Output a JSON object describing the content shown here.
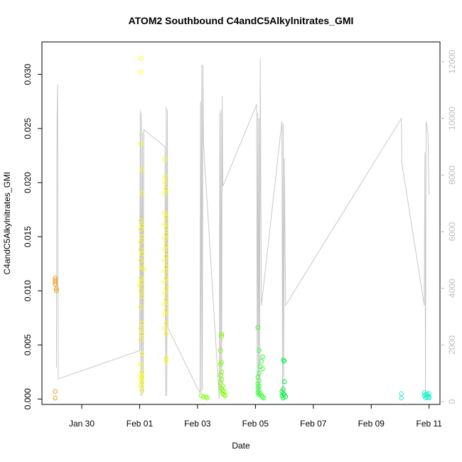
{
  "chart_data": {
    "type": "scatter",
    "title": "ATOM2 Southbound C4andC5Alkylnitrates_GMI",
    "xlabel": "Date",
    "ylabel": "C4andC5Alkylnitrates_GMI",
    "x_ticks": [
      "Jan 30",
      "Feb 01",
      "Feb 03",
      "Feb 05",
      "Feb 07",
      "Feb 09",
      "Feb 11"
    ],
    "x_range_days": [
      "Jan 28 15:00",
      "Feb 11 09:00"
    ],
    "ylim": [
      -0.0005,
      0.033
    ],
    "y_ticks": [
      "0.000",
      "0.005",
      "0.010",
      "0.015",
      "0.020",
      "0.025",
      "0.030"
    ],
    "y2lim": [
      -100,
      12700
    ],
    "y2_ticks": [
      "0",
      "2000",
      "4000",
      "6000",
      "8000",
      "10000",
      "12000"
    ],
    "y2_color": "#bdbdbd",
    "grid": false,
    "series": [
      {
        "color": "#f29a1a",
        "points": [
          [
            "Jan 29 02:00",
            0.0112
          ],
          [
            "Jan 29 02:00",
            0.011
          ],
          [
            "Jan 29 02:00",
            0.0108
          ],
          [
            "Jan 29 02:00",
            0.0106
          ],
          [
            "Jan 29 03:00",
            0.0102
          ],
          [
            "Jan 29 03:00",
            0.01
          ],
          [
            "Jan 29 02:00",
            0.0007
          ],
          [
            "Jan 29 02:00",
            0.0001
          ]
        ]
      },
      {
        "color": "#ffff00",
        "points": [
          [
            "Feb 01 01:00",
            0.0315
          ],
          [
            "Feb 01 01:00",
            0.0302
          ],
          [
            "Feb 01 01:00",
            0.0236
          ],
          [
            "Feb 01 02:00",
            0.0212
          ],
          [
            "Feb 01 02:00",
            0.019
          ],
          [
            "Feb 01 01:00",
            0.0165
          ],
          [
            "Feb 01 02:00",
            0.016
          ],
          [
            "Feb 01 01:00",
            0.0157
          ],
          [
            "Feb 01 02:00",
            0.015
          ],
          [
            "Feb 01 01:00",
            0.0145
          ],
          [
            "Feb 01 01:00",
            0.0138
          ],
          [
            "Feb 01 02:00",
            0.0134
          ],
          [
            "Feb 01 01:00",
            0.0128
          ],
          [
            "Feb 01 02:00",
            0.0122
          ],
          [
            "Feb 01 03:00",
            0.012
          ],
          [
            "Feb 01 01:00",
            0.0112
          ],
          [
            "Feb 01 02:00",
            0.0108
          ],
          [
            "Feb 01 00:00",
            0.0105
          ],
          [
            "Feb 01 01:00",
            0.01
          ],
          [
            "Feb 01 02:00",
            0.0095
          ],
          [
            "Feb 01 01:00",
            0.0085
          ],
          [
            "Feb 01 02:00",
            0.007
          ],
          [
            "Feb 01 01:00",
            0.0065
          ],
          [
            "Feb 01 02:00",
            0.006
          ],
          [
            "Feb 01 01:00",
            0.0055
          ],
          [
            "Feb 01 02:00",
            0.0042
          ],
          [
            "Feb 01 01:00",
            0.0032
          ],
          [
            "Feb 01 02:00",
            0.0025
          ],
          [
            "Feb 01 01:00",
            0.0022
          ],
          [
            "Feb 01 02:00",
            0.002
          ],
          [
            "Feb 01 01:00",
            0.0018
          ],
          [
            "Feb 01 02:00",
            0.0015
          ],
          [
            "Feb 01 01:00",
            0.0012
          ],
          [
            "Feb 01 02:00",
            0.0008
          ],
          [
            "Feb 01 21:00",
            0.0222
          ],
          [
            "Feb 01 21:00",
            0.0205
          ],
          [
            "Feb 01 21:00",
            0.02
          ],
          [
            "Feb 01 22:00",
            0.0194
          ],
          [
            "Feb 01 21:00",
            0.019
          ],
          [
            "Feb 01 21:00",
            0.0172
          ],
          [
            "Feb 01 22:00",
            0.0168
          ],
          [
            "Feb 01 21:00",
            0.0162
          ],
          [
            "Feb 01 22:00",
            0.0158
          ],
          [
            "Feb 01 22:00",
            0.0152
          ],
          [
            "Feb 01 21:00",
            0.0148
          ],
          [
            "Feb 01 22:00",
            0.0142
          ],
          [
            "Feb 01 21:00",
            0.0138
          ],
          [
            "Feb 01 22:00",
            0.0132
          ],
          [
            "Feb 01 21:00",
            0.0128
          ],
          [
            "Feb 01 22:00",
            0.0122
          ],
          [
            "Feb 01 21:00",
            0.0118
          ],
          [
            "Feb 01 22:00",
            0.0112
          ],
          [
            "Feb 01 21:00",
            0.0108
          ],
          [
            "Feb 01 22:00",
            0.0102
          ],
          [
            "Feb 01 21:00",
            0.0098
          ],
          [
            "Feb 01 22:00",
            0.0092
          ],
          [
            "Feb 01 21:00",
            0.0088
          ],
          [
            "Feb 01 22:00",
            0.0082
          ],
          [
            "Feb 01 21:00",
            0.0078
          ],
          [
            "Feb 01 22:00",
            0.007
          ],
          [
            "Feb 01 21:00",
            0.0065
          ],
          [
            "Feb 01 22:00",
            0.006
          ],
          [
            "Feb 01 22:00",
            0.0038
          ],
          [
            "Feb 01 22:00",
            0.0035
          ]
        ]
      },
      {
        "color": "#80ff00",
        "points": [
          [
            "Feb 03 03:00",
            0.0003
          ],
          [
            "Feb 03 05:00",
            0.0002
          ],
          [
            "Feb 03 07:00",
            0.0002
          ],
          [
            "Feb 03 08:00",
            0.0001
          ],
          [
            "Feb 03 20:00",
            0.006
          ],
          [
            "Feb 03 20:00",
            0.0058
          ],
          [
            "Feb 03 19:00",
            0.0045
          ],
          [
            "Feb 03 20:00",
            0.0034
          ],
          [
            "Feb 03 19:00",
            0.0032
          ],
          [
            "Feb 03 20:00",
            0.0025
          ],
          [
            "Feb 03 19:00",
            0.0022
          ],
          [
            "Feb 03 20:00",
            0.0018
          ],
          [
            "Feb 03 19:00",
            0.0015
          ],
          [
            "Feb 03 21:00",
            0.0012
          ],
          [
            "Feb 03 20:00",
            0.001
          ],
          [
            "Feb 03 21:00",
            0.0008
          ],
          [
            "Feb 03 22:00",
            0.0007
          ],
          [
            "Feb 03 21:00",
            0.0005
          ],
          [
            "Feb 03 22:00",
            0.0004
          ],
          [
            "Feb 03 23:00",
            0.0003
          ]
        ]
      },
      {
        "color": "#33ff33",
        "points": [
          [
            "Feb 05 02:00",
            0.0066
          ],
          [
            "Feb 05 03:00",
            0.0045
          ],
          [
            "Feb 05 06:00",
            0.0039
          ],
          [
            "Feb 05 05:00",
            0.0035
          ],
          [
            "Feb 05 04:00",
            0.003
          ],
          [
            "Feb 05 06:00",
            0.0028
          ],
          [
            "Feb 05 03:00",
            0.0024
          ],
          [
            "Feb 05 02:00",
            0.002
          ],
          [
            "Feb 05 03:00",
            0.0017
          ],
          [
            "Feb 05 02:00",
            0.0014
          ],
          [
            "Feb 05 03:00",
            0.0012
          ],
          [
            "Feb 05 02:00",
            0.001
          ],
          [
            "Feb 05 03:00",
            0.0008
          ],
          [
            "Feb 05 02:00",
            0.0006
          ],
          [
            "Feb 05 04:00",
            0.0005
          ],
          [
            "Feb 05 03:00",
            0.0004
          ],
          [
            "Feb 05 05:00",
            0.0003
          ],
          [
            "Feb 05 06:00",
            0.0002
          ],
          [
            "Feb 05 07:00",
            0.0001
          ]
        ]
      },
      {
        "color": "#00ee44",
        "points": [
          [
            "Feb 05 23:00",
            0.0036
          ],
          [
            "Feb 06 00:00",
            0.0035
          ],
          [
            "Feb 06 00:00",
            0.0016
          ],
          [
            "Feb 05 23:00",
            0.0009
          ],
          [
            "Feb 05 22:00",
            0.0007
          ],
          [
            "Feb 05 23:00",
            0.0005
          ],
          [
            "Feb 06 00:00",
            0.0004
          ],
          [
            "Feb 05 22:00",
            0.0003
          ],
          [
            "Feb 06 01:00",
            0.0002
          ],
          [
            "Feb 05 23:00",
            0.0001
          ]
        ]
      },
      {
        "color": "#22eecc",
        "points": [
          [
            "Feb 10 01:00",
            0.0005
          ],
          [
            "Feb 10 01:00",
            0.0001
          ],
          [
            "Feb 10 20:00",
            0.0006
          ],
          [
            "Feb 10 22:00",
            0.0005
          ],
          [
            "Feb 10 21:00",
            0.0004
          ],
          [
            "Feb 11 00:00",
            0.0005
          ],
          [
            "Feb 10 20:00",
            0.0003
          ],
          [
            "Feb 10 22:00",
            0.0002
          ],
          [
            "Feb 10 23:00",
            0.0003
          ],
          [
            "Feb 11 00:00",
            0.0002
          ],
          [
            "Feb 10 21:00",
            0.0001
          ],
          [
            "Feb 11 00:00",
            0.0001
          ]
        ]
      }
    ],
    "altitude_series": {
      "axis": "right",
      "color": "#c8c8c8",
      "points": [
        [
          "Jan 29 03:00",
          1200
        ],
        [
          "Jan 29 03:30",
          9800
        ],
        [
          "Jan 29 04:00",
          11200
        ],
        [
          "Jan 29 04:30",
          800
        ],
        [
          "Feb 01 00:00",
          1800
        ],
        [
          "Feb 01 00:30",
          10300
        ],
        [
          "Feb 01 01:00",
          200
        ],
        [
          "Feb 01 01:30",
          10200
        ],
        [
          "Feb 01 02:00",
          200
        ],
        [
          "Feb 01 02:30",
          9500
        ],
        [
          "Feb 01 03:00",
          300
        ],
        [
          "Feb 01 03:30",
          9600
        ],
        [
          "Feb 01 21:00",
          9000
        ],
        [
          "Feb 01 21:30",
          200
        ],
        [
          "Feb 01 22:00",
          10400
        ],
        [
          "Feb 01 22:30",
          200
        ],
        [
          "Feb 01 23:00",
          10300
        ],
        [
          "Feb 01 23:30",
          2600
        ],
        [
          "Feb 03 02:00",
          300
        ],
        [
          "Feb 03 02:30",
          10600
        ],
        [
          "Feb 03 03:00",
          300
        ],
        [
          "Feb 03 03:30",
          11900
        ],
        [
          "Feb 03 04:00",
          400
        ],
        [
          "Feb 03 04:30",
          11900
        ],
        [
          "Feb 03 05:00",
          9100
        ],
        [
          "Feb 03 18:00",
          100
        ],
        [
          "Feb 03 18:30",
          10200
        ],
        [
          "Feb 03 19:00",
          300
        ],
        [
          "Feb 03 19:30",
          10300
        ],
        [
          "Feb 03 20:00",
          300
        ],
        [
          "Feb 03 20:30",
          10800
        ],
        [
          "Feb 03 21:00",
          7600
        ],
        [
          "Feb 05 01:00",
          10500
        ],
        [
          "Feb 05 01:30",
          200
        ],
        [
          "Feb 05 02:00",
          10200
        ],
        [
          "Feb 05 02:30",
          200
        ],
        [
          "Feb 05 03:00",
          10000
        ],
        [
          "Feb 05 03:30",
          300
        ],
        [
          "Feb 05 04:00",
          12100
        ],
        [
          "Feb 05 05:00",
          3400
        ],
        [
          "Feb 05 22:00",
          9900
        ],
        [
          "Feb 05 22:30",
          200
        ],
        [
          "Feb 05 23:00",
          9800
        ],
        [
          "Feb 05 23:30",
          200
        ],
        [
          "Feb 06 00:00",
          8600
        ],
        [
          "Feb 06 01:00",
          3400
        ],
        [
          "Feb 10 01:00",
          10000
        ],
        [
          "Feb 10 01:30",
          8400
        ],
        [
          "Feb 10 20:00",
          3400
        ],
        [
          "Feb 10 20:30",
          8800
        ],
        [
          "Feb 10 21:00",
          300
        ],
        [
          "Feb 10 21:30",
          9900
        ],
        [
          "Feb 10 23:00",
          9500
        ],
        [
          "Feb 11 00:00",
          7300
        ]
      ]
    }
  }
}
